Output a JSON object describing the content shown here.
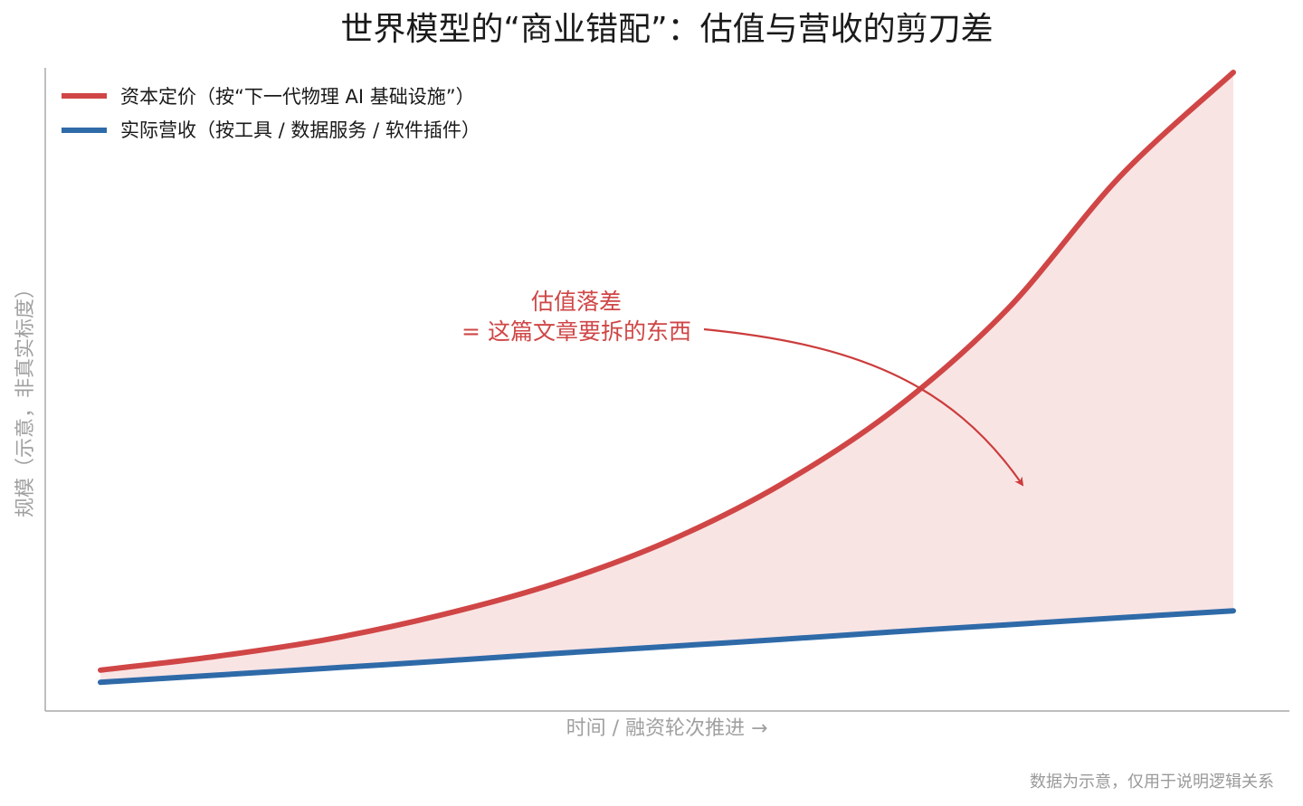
{
  "chart_data": {
    "type": "line",
    "title": "世界模型的“商业错配”：估值与营收的剪刀差",
    "xlabel": "时间 / 融资轮次推进 →",
    "ylabel": "规模（示意，非真实标度）",
    "x": [
      0,
      0.1,
      0.2,
      0.3,
      0.4,
      0.5,
      0.6,
      0.7,
      0.8,
      0.9,
      1.0
    ],
    "xlim": [
      0,
      1
    ],
    "ylim": [
      0,
      1
    ],
    "grid": false,
    "legend_position": "top-left",
    "series": [
      {
        "name": "资本定价（按“下一代物理 AI 基础设施”）",
        "color": "#d04646",
        "values": [
          0.064,
          0.085,
          0.112,
          0.15,
          0.199,
          0.265,
          0.354,
          0.471,
          0.628,
          0.837,
          1.0
        ]
      },
      {
        "name": "实际营收（按工具 / 数据服务 / 软件插件）",
        "color": "#2f6aa8",
        "values": [
          0.045,
          0.056,
          0.067,
          0.078,
          0.09,
          0.101,
          0.112,
          0.124,
          0.135,
          0.146,
          0.157
        ]
      }
    ],
    "fill_between": {
      "color": "#f9e4e4"
    },
    "annotation": {
      "lines": [
        "估值落差",
        "= 这篇文章要拆的东西"
      ],
      "color": "#d04646",
      "arrow_color": "#cc3c3c"
    },
    "footnote": "数据为示意，仅用于说明逻辑关系"
  }
}
